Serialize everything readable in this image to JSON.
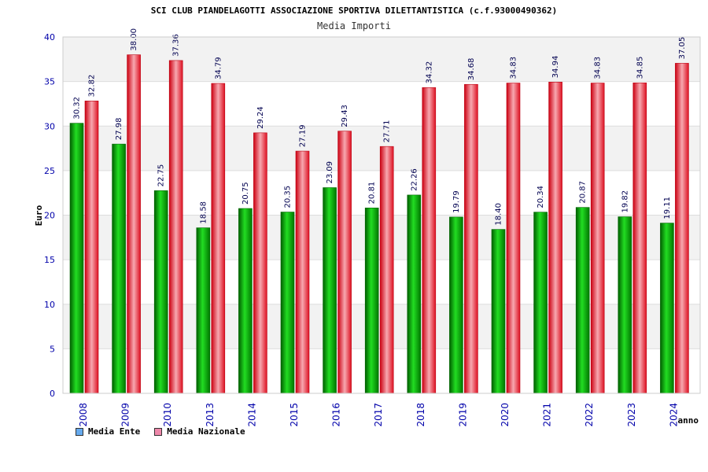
{
  "colors": {
    "ente": "#00aa00",
    "nazionale": "#ee2233",
    "legend_ente": "#66aaee",
    "legend_nazionale": "#ee88aa",
    "band": "#f2f2f2",
    "tick": "#0000aa"
  },
  "chart_data": {
    "type": "bar",
    "title": "SCI CLUB PIANDELAGOTTI ASSOCIAZIONE SPORTIVA DILETTANTISTICA (c.f.93000490362)",
    "subtitle": "Media Importi",
    "xlabel": "anno",
    "ylabel": "Euro",
    "ylim": [
      0,
      40
    ],
    "yticks": [
      "0",
      "5",
      "10",
      "15",
      "20",
      "25",
      "30",
      "35",
      "40"
    ],
    "categories": [
      "2008",
      "2009",
      "2010",
      "2013",
      "2014",
      "2015",
      "2016",
      "2017",
      "2018",
      "2019",
      "2020",
      "2021",
      "2022",
      "2023",
      "2024"
    ],
    "series": [
      {
        "name": "Media Ente",
        "values": [
          30.32,
          27.98,
          22.75,
          18.58,
          20.75,
          20.35,
          23.09,
          20.81,
          22.26,
          19.79,
          18.4,
          20.34,
          20.87,
          19.82,
          19.11
        ],
        "labels": [
          "30.32",
          "27.98",
          "22.75",
          "18.58",
          "20.75",
          "20.35",
          "23.09",
          "20.81",
          "22.26",
          "19.79",
          "18.40",
          "20.34",
          "20.87",
          "19.82",
          "19.11"
        ]
      },
      {
        "name": "Media Nazionale",
        "values": [
          32.82,
          38.0,
          37.36,
          34.79,
          29.24,
          27.19,
          29.43,
          27.71,
          34.32,
          34.68,
          34.83,
          34.94,
          34.83,
          34.85,
          37.05
        ],
        "labels": [
          "32.82",
          "38.00",
          "37.36",
          "34.79",
          "29.24",
          "27.19",
          "29.43",
          "27.71",
          "34.32",
          "34.68",
          "34.83",
          "34.94",
          "34.83",
          "34.85",
          "37.05"
        ]
      }
    ],
    "legend": [
      "Media Ente",
      "Media Nazionale"
    ],
    "legend_position": "bottom-left",
    "grid": true
  }
}
